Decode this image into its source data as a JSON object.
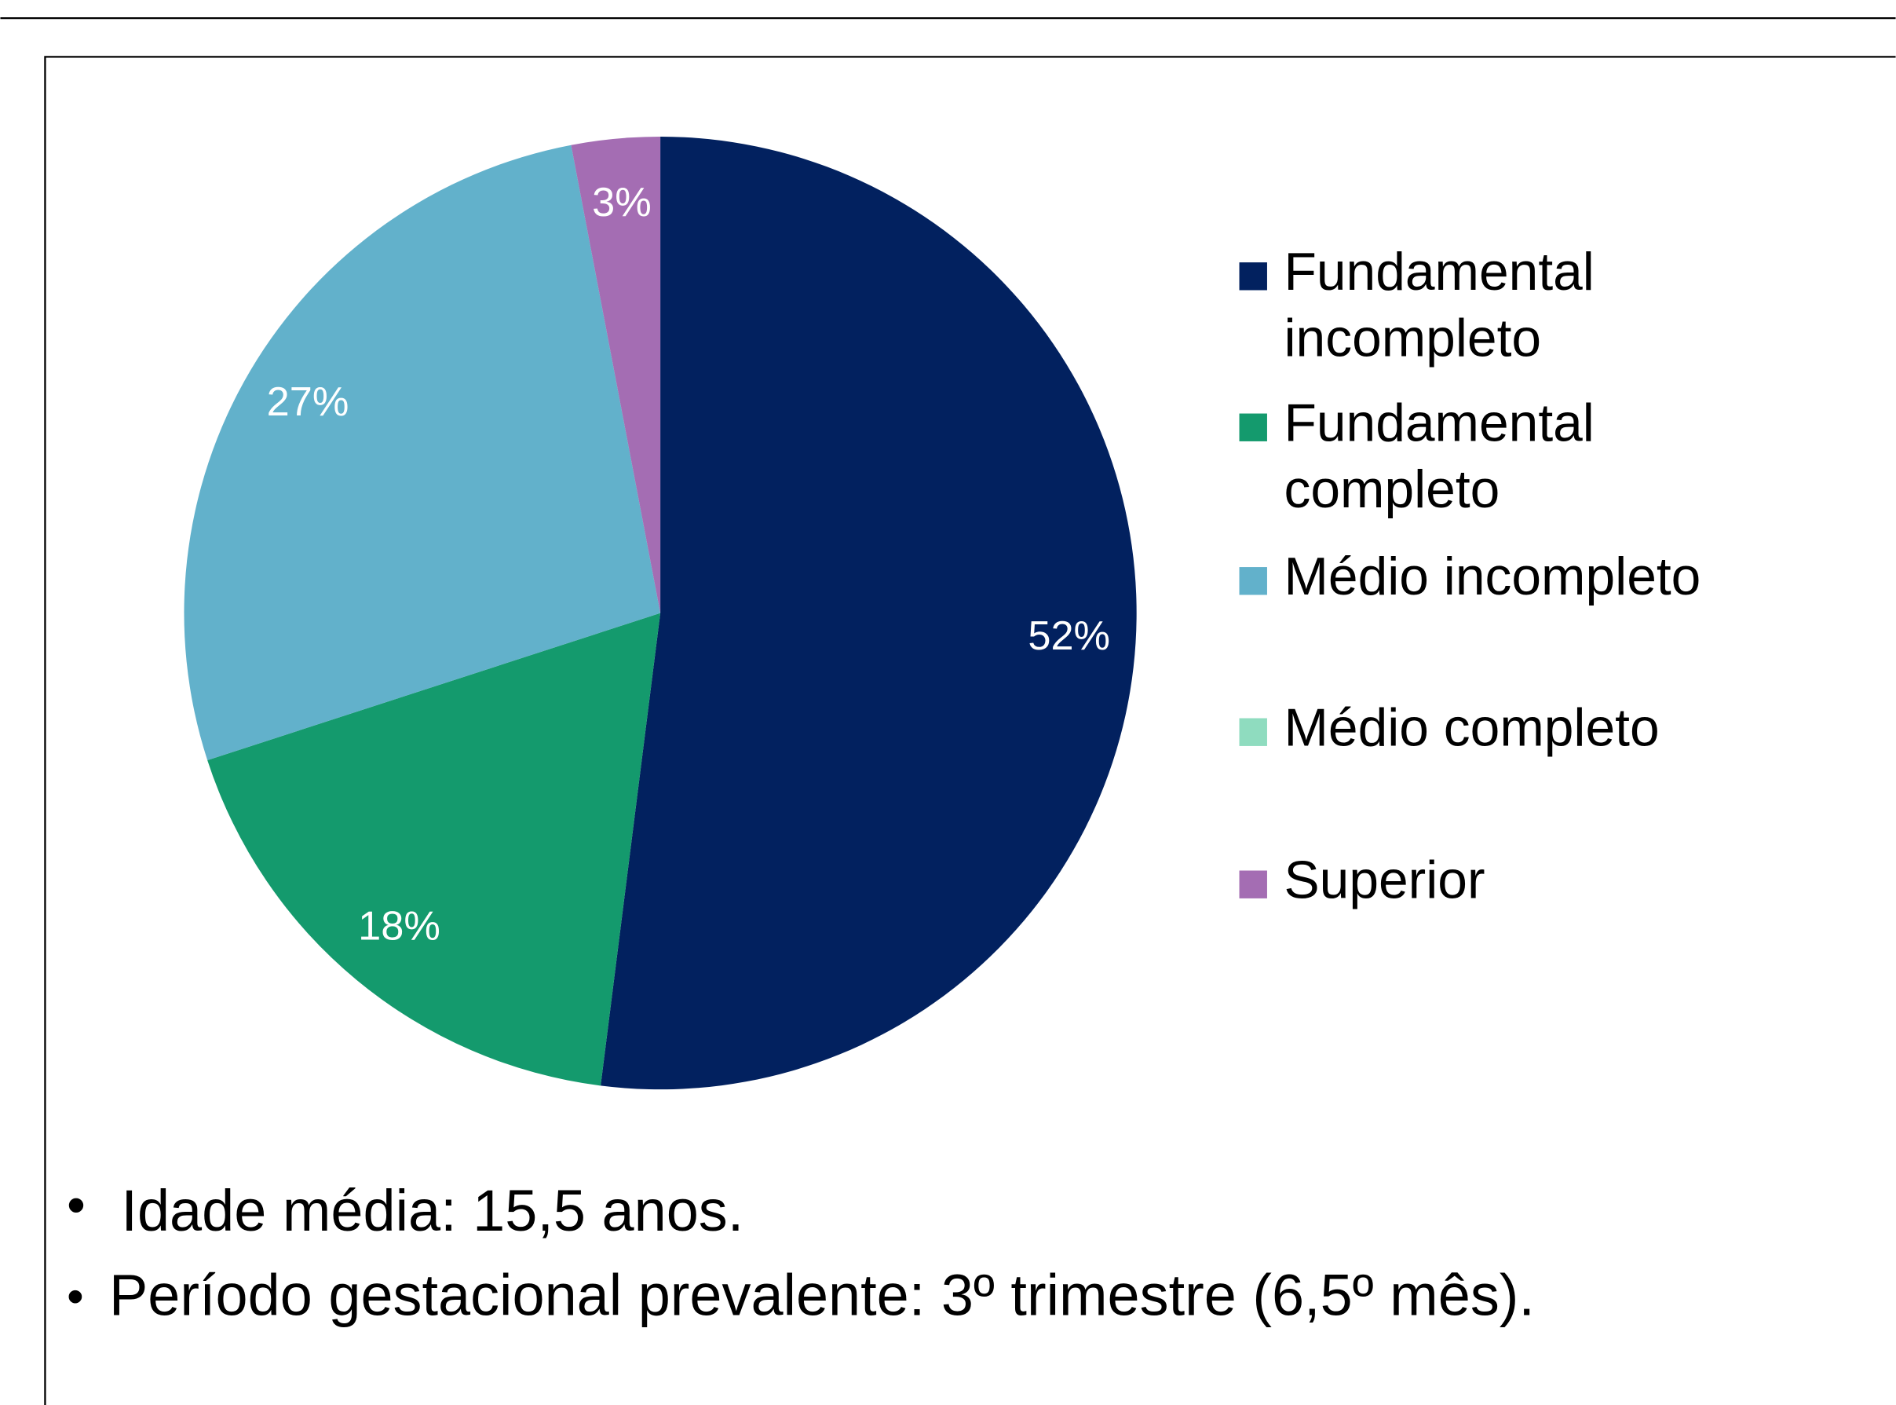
{
  "chart_data": {
    "type": "pie",
    "categories": [
      "Fundamental incompleto",
      "Fundamental completo",
      "Médio incompleto",
      "Médio completo",
      "Superior"
    ],
    "values": [
      52,
      18,
      27,
      0,
      3
    ],
    "value_labels": [
      "52%",
      "18%",
      "27%",
      null,
      "3%"
    ],
    "colors": [
      "#02215f",
      "#149a6d",
      "#62b1cb",
      "#8fdcbf",
      "#a46db3"
    ],
    "legend": "right",
    "annotations": [
      "Idade média: 15,5 anos.",
      "Período gestacional prevalente: 3º trimestre (6,5º mês)."
    ]
  }
}
